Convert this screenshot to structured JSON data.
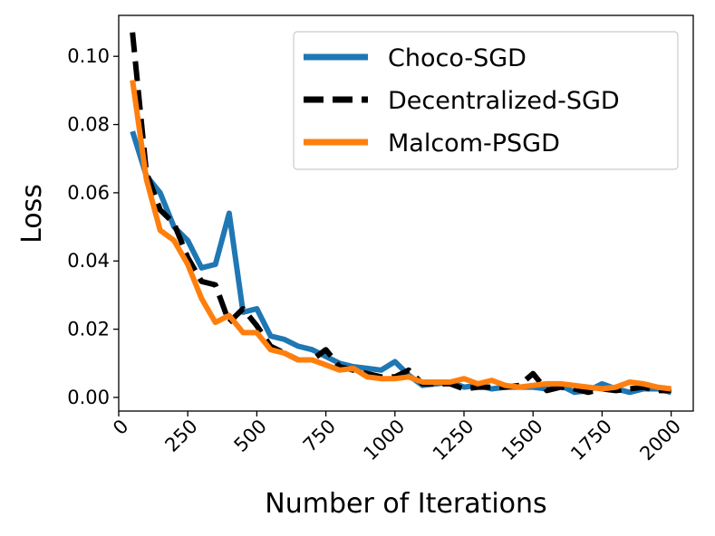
{
  "chart_data": {
    "type": "line",
    "title": "",
    "xlabel": "Number of Iterations",
    "ylabel": "Loss",
    "xlim": [
      0,
      2080
    ],
    "ylim": [
      -0.004,
      0.112
    ],
    "xticks": [
      0,
      250,
      500,
      750,
      1000,
      1250,
      1500,
      1750,
      2000
    ],
    "yticks": [
      0.0,
      0.02,
      0.04,
      0.06,
      0.08,
      0.1
    ],
    "ytick_labels": [
      "0.00",
      "0.02",
      "0.04",
      "0.06",
      "0.08",
      "0.10"
    ],
    "legend_position": "top-right",
    "grid": false,
    "series": [
      {
        "name": "Choco-SGD",
        "color": "#1f77b4",
        "dash": "solid",
        "x": [
          50,
          100,
          150,
          200,
          250,
          300,
          350,
          400,
          450,
          500,
          550,
          600,
          650,
          700,
          750,
          800,
          850,
          900,
          950,
          1000,
          1050,
          1100,
          1150,
          1200,
          1250,
          1300,
          1350,
          1400,
          1450,
          1500,
          1550,
          1600,
          1650,
          1700,
          1750,
          1800,
          1850,
          1900,
          1950,
          2000
        ],
        "values": [
          0.078,
          0.065,
          0.06,
          0.05,
          0.046,
          0.038,
          0.039,
          0.054,
          0.025,
          0.026,
          0.018,
          0.017,
          0.015,
          0.014,
          0.012,
          0.01,
          0.009,
          0.0085,
          0.008,
          0.0105,
          0.0065,
          0.0035,
          0.004,
          0.0045,
          0.003,
          0.0035,
          0.0025,
          0.003,
          0.003,
          0.003,
          0.0025,
          0.0035,
          0.0015,
          0.002,
          0.004,
          0.0025,
          0.0015,
          0.0025,
          0.0025,
          0.0015
        ]
      },
      {
        "name": "Decentralized-SGD",
        "color": "#000000",
        "dash": "dashed",
        "x": [
          50,
          100,
          150,
          200,
          250,
          300,
          350,
          400,
          450,
          500,
          550,
          600,
          650,
          700,
          750,
          800,
          850,
          900,
          950,
          1000,
          1050,
          1100,
          1150,
          1200,
          1250,
          1300,
          1350,
          1400,
          1450,
          1500,
          1550,
          1600,
          1650,
          1700,
          1750,
          1800,
          1850,
          1900,
          1950,
          2000
        ],
        "values": [
          0.107,
          0.066,
          0.055,
          0.051,
          0.041,
          0.034,
          0.033,
          0.022,
          0.026,
          0.021,
          0.015,
          0.013,
          0.011,
          0.011,
          0.014,
          0.009,
          0.008,
          0.007,
          0.006,
          0.006,
          0.008,
          0.004,
          0.004,
          0.004,
          0.0025,
          0.003,
          0.003,
          0.003,
          0.0035,
          0.007,
          0.002,
          0.003,
          0.0025,
          0.0015,
          0.0025,
          0.002,
          0.0025,
          0.003,
          0.002,
          0.002
        ]
      },
      {
        "name": "Malcom-PSGD",
        "color": "#ff7f0e",
        "dash": "solid",
        "x": [
          50,
          100,
          150,
          200,
          250,
          300,
          350,
          400,
          450,
          500,
          550,
          600,
          650,
          700,
          750,
          800,
          850,
          900,
          950,
          1000,
          1050,
          1100,
          1150,
          1200,
          1250,
          1300,
          1350,
          1400,
          1450,
          1500,
          1550,
          1600,
          1650,
          1700,
          1750,
          1800,
          1850,
          1900,
          1950,
          2000
        ],
        "values": [
          0.093,
          0.064,
          0.049,
          0.046,
          0.039,
          0.029,
          0.022,
          0.024,
          0.019,
          0.019,
          0.014,
          0.013,
          0.011,
          0.011,
          0.0095,
          0.008,
          0.0085,
          0.006,
          0.0055,
          0.0055,
          0.006,
          0.0045,
          0.0045,
          0.0045,
          0.0055,
          0.004,
          0.005,
          0.0035,
          0.003,
          0.0035,
          0.004,
          0.004,
          0.0035,
          0.003,
          0.0025,
          0.003,
          0.0045,
          0.004,
          0.003,
          0.0025
        ]
      }
    ]
  }
}
